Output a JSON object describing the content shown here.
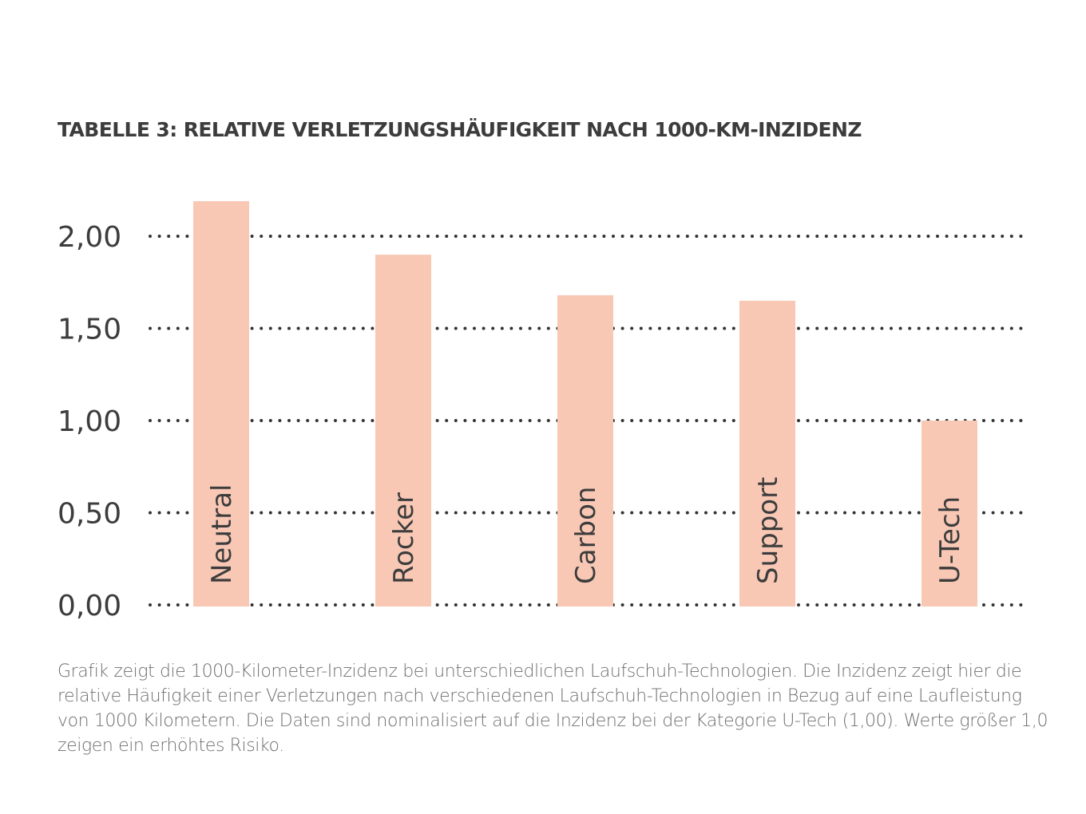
{
  "chart_data": {
    "type": "bar",
    "title": "TABELLE 3: RELATIVE VERLETZUNGSHÄUFIGKEIT NACH 1000-KM-INZIDENZ",
    "categories": [
      "Neutral",
      "Rocker",
      "Carbon",
      "Support",
      "U-Tech"
    ],
    "values": [
      2.19,
      1.9,
      1.68,
      1.65,
      1.0
    ],
    "ylim": [
      0,
      2.0
    ],
    "yticks": [
      0,
      0.5,
      1.0,
      1.5,
      2.0
    ],
    "ytick_labels": [
      "0,00",
      "0,50",
      "1,00",
      "1,50",
      "2,00"
    ],
    "grid": "dotted",
    "bar_color": "#f8c8b5",
    "text_color": "#3c3c3c"
  },
  "caption": "Grafik zeigt die 1000-Kilometer-Inzidenz bei unterschiedlichen Laufschuh-Technologien. Die Inzidenz zeigt hier die relative Häufigkeit einer Verletzungen nach verschiedenen Laufschuh-Technologien in Bezug auf eine Laufleistung von 1000 Kilometern. Die Daten sind nominalisiert auf die Inzidenz bei der Kategorie U-Tech (1,00). Werte größer 1,0 zeigen ein erhöhtes Risiko."
}
